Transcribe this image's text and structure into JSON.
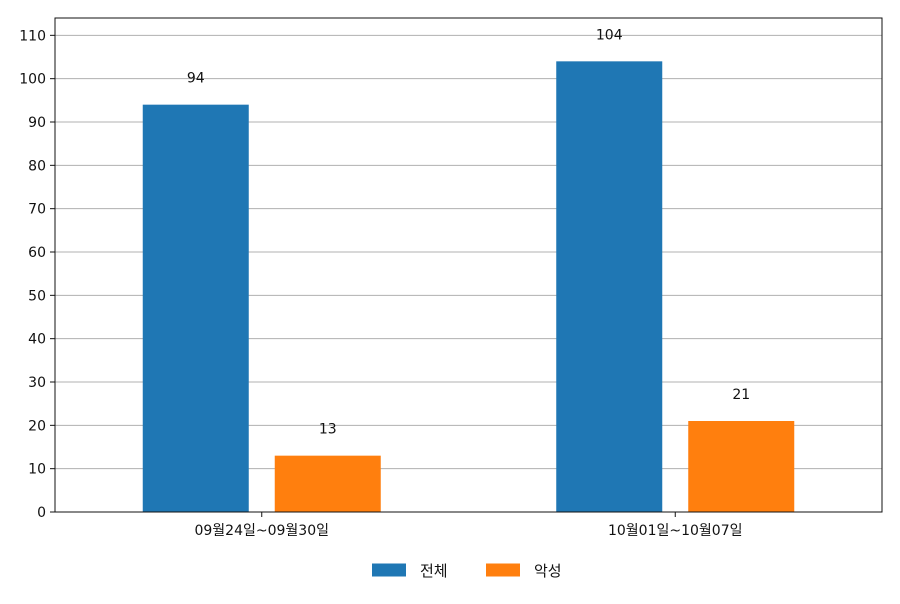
{
  "chart_data": {
    "type": "bar",
    "categories": [
      "09월24일~09월30일",
      "10월01일~10월07일"
    ],
    "series": [
      {
        "name": "전체",
        "values": [
          94,
          104
        ],
        "color": "#1f77b4"
      },
      {
        "name": "악성",
        "values": [
          13,
          21
        ],
        "color": "#ff7f0e"
      }
    ],
    "ylim": [
      0,
      114
    ],
    "yticks": [
      0,
      10,
      20,
      30,
      40,
      50,
      60,
      70,
      80,
      90,
      100,
      110
    ],
    "grid": true,
    "legend_position": "bottom-center",
    "data_labels": true
  }
}
